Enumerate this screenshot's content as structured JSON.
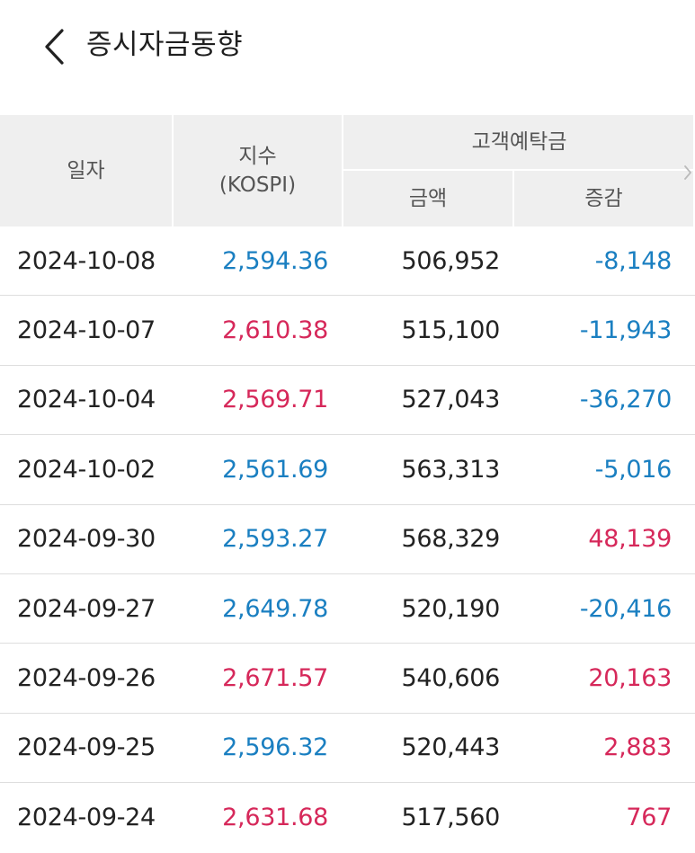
{
  "header": {
    "title": "증시자금동향",
    "back_icon": "chevron-left-icon"
  },
  "table": {
    "headers": {
      "date": "일자",
      "index_line1": "지수",
      "index_line2": "(KOSPI)",
      "group": "고객예탁금",
      "amount": "금액",
      "change": "증감"
    },
    "scroll_icon": "chevron-right-icon",
    "colors": {
      "up": "#d6285a",
      "down": "#1a7fc1",
      "header_bg": "#efefef",
      "text": "#222222"
    },
    "rows": [
      {
        "date": "2024-10-08",
        "index": "2,594.36",
        "index_dir": "down",
        "amount": "506,952",
        "change": "-8,148",
        "change_dir": "down"
      },
      {
        "date": "2024-10-07",
        "index": "2,610.38",
        "index_dir": "up",
        "amount": "515,100",
        "change": "-11,943",
        "change_dir": "down"
      },
      {
        "date": "2024-10-04",
        "index": "2,569.71",
        "index_dir": "up",
        "amount": "527,043",
        "change": "-36,270",
        "change_dir": "down"
      },
      {
        "date": "2024-10-02",
        "index": "2,561.69",
        "index_dir": "down",
        "amount": "563,313",
        "change": "-5,016",
        "change_dir": "down"
      },
      {
        "date": "2024-09-30",
        "index": "2,593.27",
        "index_dir": "down",
        "amount": "568,329",
        "change": "48,139",
        "change_dir": "up"
      },
      {
        "date": "2024-09-27",
        "index": "2,649.78",
        "index_dir": "down",
        "amount": "520,190",
        "change": "-20,416",
        "change_dir": "down"
      },
      {
        "date": "2024-09-26",
        "index": "2,671.57",
        "index_dir": "up",
        "amount": "540,606",
        "change": "20,163",
        "change_dir": "up"
      },
      {
        "date": "2024-09-25",
        "index": "2,596.32",
        "index_dir": "down",
        "amount": "520,443",
        "change": "2,883",
        "change_dir": "up"
      },
      {
        "date": "2024-09-24",
        "index": "2,631.68",
        "index_dir": "up",
        "amount": "517,560",
        "change": "767",
        "change_dir": "up"
      }
    ]
  }
}
